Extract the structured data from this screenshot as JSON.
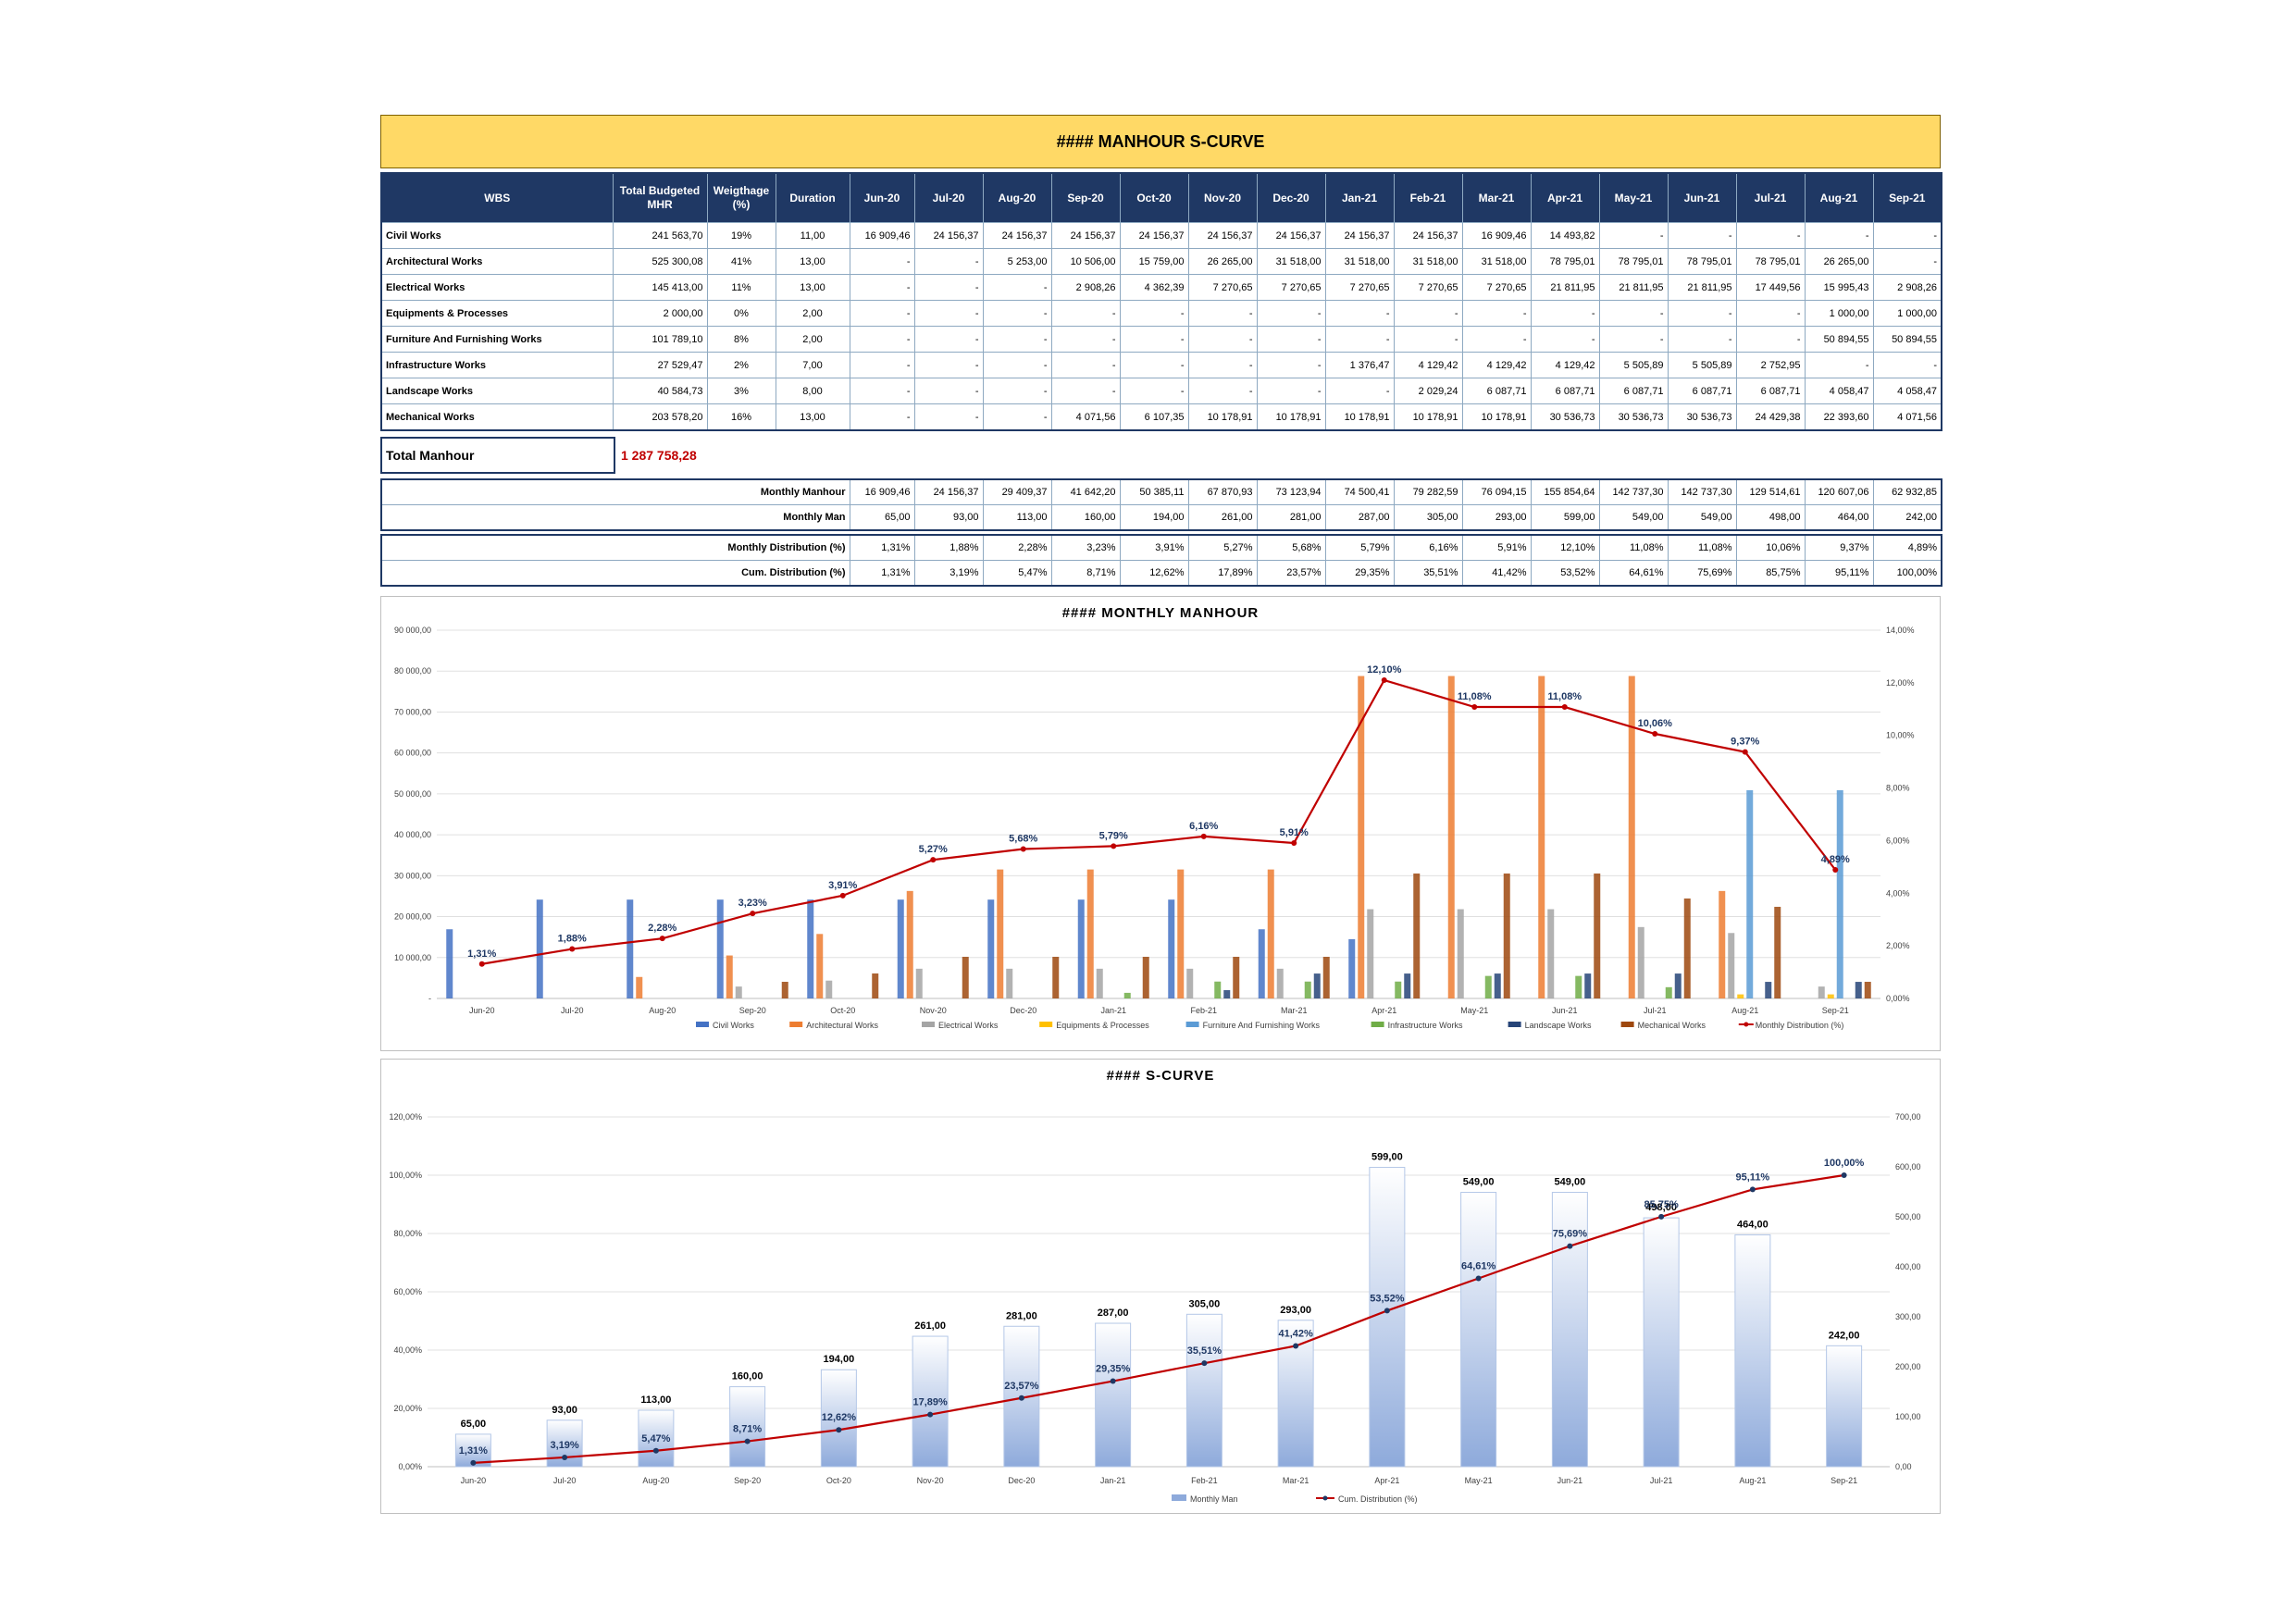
{
  "banner": {
    "title": "#### MANHOUR S-CURVE"
  },
  "columns": {
    "wbs": "WBS",
    "total_budget": "Total Budgeted MHR",
    "weightage": "Weigthage (%)",
    "duration": "Duration",
    "months": [
      "Jun-20",
      "Jul-20",
      "Aug-20",
      "Sep-20",
      "Oct-20",
      "Nov-20",
      "Dec-20",
      "Jan-21",
      "Feb-21",
      "Mar-21",
      "Apr-21",
      "May-21",
      "Jun-21",
      "Jul-21",
      "Aug-21",
      "Sep-21"
    ]
  },
  "wbs_rows": [
    {
      "name": "Civil Works",
      "total": "241 563,70",
      "weight": "19%",
      "duration": "11,00",
      "months": [
        "16 909,46",
        "24 156,37",
        "24 156,37",
        "24 156,37",
        "24 156,37",
        "24 156,37",
        "24 156,37",
        "24 156,37",
        "24 156,37",
        "16 909,46",
        "14 493,82",
        "-",
        "-",
        "-",
        "-",
        "-"
      ]
    },
    {
      "name": "Architectural Works",
      "total": "525 300,08",
      "weight": "41%",
      "duration": "13,00",
      "months": [
        "-",
        "-",
        "5 253,00",
        "10 506,00",
        "15 759,00",
        "26 265,00",
        "31 518,00",
        "31 518,00",
        "31 518,00",
        "31 518,00",
        "78 795,01",
        "78 795,01",
        "78 795,01",
        "78 795,01",
        "26 265,00",
        "-"
      ]
    },
    {
      "name": "Electrical Works",
      "total": "145 413,00",
      "weight": "11%",
      "duration": "13,00",
      "months": [
        "-",
        "-",
        "-",
        "2 908,26",
        "4 362,39",
        "7 270,65",
        "7 270,65",
        "7 270,65",
        "7 270,65",
        "7 270,65",
        "21 811,95",
        "21 811,95",
        "21 811,95",
        "17 449,56",
        "15 995,43",
        "2 908,26"
      ]
    },
    {
      "name": "Equipments & Processes",
      "total": "2 000,00",
      "weight": "0%",
      "duration": "2,00",
      "months": [
        "-",
        "-",
        "-",
        "-",
        "-",
        "-",
        "-",
        "-",
        "-",
        "-",
        "-",
        "-",
        "-",
        "-",
        "1 000,00",
        "1 000,00"
      ]
    },
    {
      "name": "Furniture And Furnishing Works",
      "total": "101 789,10",
      "weight": "8%",
      "duration": "2,00",
      "months": [
        "-",
        "-",
        "-",
        "-",
        "-",
        "-",
        "-",
        "-",
        "-",
        "-",
        "-",
        "-",
        "-",
        "-",
        "50 894,55",
        "50 894,55"
      ]
    },
    {
      "name": "Infrastructure Works",
      "total": "27 529,47",
      "weight": "2%",
      "duration": "7,00",
      "months": [
        "-",
        "-",
        "-",
        "-",
        "-",
        "-",
        "-",
        "1 376,47",
        "4 129,42",
        "4 129,42",
        "4 129,42",
        "5 505,89",
        "5 505,89",
        "2 752,95",
        "-",
        "-"
      ]
    },
    {
      "name": "Landscape Works",
      "total": "40 584,73",
      "weight": "3%",
      "duration": "8,00",
      "months": [
        "-",
        "-",
        "-",
        "-",
        "-",
        "-",
        "-",
        "-",
        "2 029,24",
        "6 087,71",
        "6 087,71",
        "6 087,71",
        "6 087,71",
        "6 087,71",
        "4 058,47",
        "4 058,47"
      ]
    },
    {
      "name": "Mechanical Works",
      "total": "203 578,20",
      "weight": "16%",
      "duration": "13,00",
      "months": [
        "-",
        "-",
        "-",
        "4 071,56",
        "6 107,35",
        "10 178,91",
        "10 178,91",
        "10 178,91",
        "10 178,91",
        "10 178,91",
        "30 536,73",
        "30 536,73",
        "30 536,73",
        "24 429,38",
        "22 393,60",
        "4 071,56"
      ]
    }
  ],
  "total": {
    "label": "Total Manhour",
    "value": "1 287 758,28"
  },
  "summary1": [
    {
      "label": "Monthly Manhour",
      "values": [
        "16 909,46",
        "24 156,37",
        "29 409,37",
        "41 642,20",
        "50 385,11",
        "67 870,93",
        "73 123,94",
        "74 500,41",
        "79 282,59",
        "76 094,15",
        "155 854,64",
        "142 737,30",
        "142 737,30",
        "129 514,61",
        "120 607,06",
        "62 932,85"
      ]
    },
    {
      "label": "Monthly Man",
      "values": [
        "65,00",
        "93,00",
        "113,00",
        "160,00",
        "194,00",
        "261,00",
        "281,00",
        "287,00",
        "305,00",
        "293,00",
        "599,00",
        "549,00",
        "549,00",
        "498,00",
        "464,00",
        "242,00"
      ]
    }
  ],
  "summary2": [
    {
      "label": "Monthly Distribution (%)",
      "values": [
        "1,31%",
        "1,88%",
        "2,28%",
        "3,23%",
        "3,91%",
        "5,27%",
        "5,68%",
        "5,79%",
        "6,16%",
        "5,91%",
        "12,10%",
        "11,08%",
        "11,08%",
        "10,06%",
        "9,37%",
        "4,89%"
      ]
    },
    {
      "label": "Cum. Distribution (%)",
      "values": [
        "1,31%",
        "3,19%",
        "5,47%",
        "8,71%",
        "12,62%",
        "17,89%",
        "23,57%",
        "29,35%",
        "35,51%",
        "41,42%",
        "53,52%",
        "64,61%",
        "75,69%",
        "85,75%",
        "95,11%",
        "100,00%"
      ]
    }
  ],
  "chart_data": [
    {
      "type": "bar",
      "title": "#### MONTHLY MANHOUR",
      "categories": [
        "Jun-20",
        "Jul-20",
        "Aug-20",
        "Sep-20",
        "Oct-20",
        "Nov-20",
        "Dec-20",
        "Jan-21",
        "Feb-21",
        "Mar-21",
        "Apr-21",
        "May-21",
        "Jun-21",
        "Jul-21",
        "Aug-21",
        "Sep-21"
      ],
      "y_left": {
        "lim": [
          0,
          90000
        ],
        "ticks": [
          "-",
          "10 000,00",
          "20 000,00",
          "30 000,00",
          "40 000,00",
          "50 000,00",
          "60 000,00",
          "70 000,00",
          "80 000,00",
          "90 000,00"
        ]
      },
      "y_right": {
        "lim": [
          0,
          14
        ],
        "ticks": [
          "0,00%",
          "2,00%",
          "4,00%",
          "6,00%",
          "8,00%",
          "10,00%",
          "12,00%",
          "14,00%"
        ]
      },
      "grid": true,
      "legend_position": "bottom",
      "series": [
        {
          "name": "Civil Works",
          "color": "#4472c4",
          "values": [
            16909.46,
            24156.37,
            24156.37,
            24156.37,
            24156.37,
            24156.37,
            24156.37,
            24156.37,
            24156.37,
            16909.46,
            14493.82,
            0,
            0,
            0,
            0,
            0
          ]
        },
        {
          "name": "Architectural Works",
          "color": "#ed7d31",
          "values": [
            0,
            0,
            5253,
            10506,
            15759,
            26265,
            31518,
            31518,
            31518,
            31518,
            78795.01,
            78795.01,
            78795.01,
            78795.01,
            26265,
            0
          ]
        },
        {
          "name": "Electrical Works",
          "color": "#a5a5a5",
          "values": [
            0,
            0,
            0,
            2908.26,
            4362.39,
            7270.65,
            7270.65,
            7270.65,
            7270.65,
            7270.65,
            21811.95,
            21811.95,
            21811.95,
            17449.56,
            15995.43,
            2908.26
          ]
        },
        {
          "name": "Equipments & Processes",
          "color": "#ffc000",
          "values": [
            0,
            0,
            0,
            0,
            0,
            0,
            0,
            0,
            0,
            0,
            0,
            0,
            0,
            0,
            1000,
            1000
          ]
        },
        {
          "name": "Furniture And Furnishing Works",
          "color": "#5b9bd5",
          "values": [
            0,
            0,
            0,
            0,
            0,
            0,
            0,
            0,
            0,
            0,
            0,
            0,
            0,
            0,
            50894.55,
            50894.55
          ]
        },
        {
          "name": "Infrastructure Works",
          "color": "#70ad47",
          "values": [
            0,
            0,
            0,
            0,
            0,
            0,
            0,
            1376.47,
            4129.42,
            4129.42,
            4129.42,
            5505.89,
            5505.89,
            2752.95,
            0,
            0
          ]
        },
        {
          "name": "Landscape Works",
          "color": "#264478",
          "values": [
            0,
            0,
            0,
            0,
            0,
            0,
            0,
            0,
            2029.24,
            6087.71,
            6087.71,
            6087.71,
            6087.71,
            6087.71,
            4058.47,
            4058.47
          ]
        },
        {
          "name": "Mechanical Works",
          "color": "#9e480e",
          "values": [
            0,
            0,
            0,
            4071.56,
            6107.35,
            10178.91,
            10178.91,
            10178.91,
            10178.91,
            10178.91,
            30536.73,
            30536.73,
            30536.73,
            24429.38,
            22393.6,
            4071.56
          ]
        }
      ],
      "line": {
        "name": "Monthly Distribution (%)",
        "color": "#c00000",
        "axis": "right",
        "values": [
          1.31,
          1.88,
          2.28,
          3.23,
          3.91,
          5.27,
          5.68,
          5.79,
          6.16,
          5.91,
          12.1,
          11.08,
          11.08,
          10.06,
          9.37,
          4.89
        ],
        "labels": [
          "1,31%",
          "1,88%",
          "2,28%",
          "3,23%",
          "3,91%",
          "5,27%",
          "5,68%",
          "5,79%",
          "6,16%",
          "5,91%",
          "12,10%",
          "11,08%",
          "11,08%",
          "10,06%",
          "9,37%",
          "4,89%"
        ]
      }
    },
    {
      "type": "bar",
      "title": "#### S-CURVE",
      "categories": [
        "Jun-20",
        "Jul-20",
        "Aug-20",
        "Sep-20",
        "Oct-20",
        "Nov-20",
        "Dec-20",
        "Jan-21",
        "Feb-21",
        "Mar-21",
        "Apr-21",
        "May-21",
        "Jun-21",
        "Jul-21",
        "Aug-21",
        "Sep-21"
      ],
      "y_left": {
        "lim": [
          0,
          120
        ],
        "ticks": [
          "0,00%",
          "20,00%",
          "40,00%",
          "60,00%",
          "80,00%",
          "100,00%",
          "120,00%"
        ]
      },
      "y_right": {
        "lim": [
          0,
          700
        ],
        "ticks": [
          "0,00",
          "100,00",
          "200,00",
          "300,00",
          "400,00",
          "500,00",
          "600,00",
          "700,00"
        ]
      },
      "grid": true,
      "legend_position": "bottom",
      "bars": {
        "name": "Monthly Man",
        "color": "#8eaadb",
        "axis": "right",
        "values": [
          65,
          93,
          113,
          160,
          194,
          261,
          281,
          287,
          305,
          293,
          599,
          549,
          549,
          498,
          464,
          242
        ],
        "labels": [
          "65,00",
          "93,00",
          "113,00",
          "160,00",
          "194,00",
          "261,00",
          "281,00",
          "287,00",
          "305,00",
          "293,00",
          "599,00",
          "549,00",
          "549,00",
          "498,00",
          "464,00",
          "242,00"
        ]
      },
      "line": {
        "name": "Cum. Distribution (%)",
        "color": "#c00000",
        "axis": "left",
        "values": [
          1.31,
          3.19,
          5.47,
          8.71,
          12.62,
          17.89,
          23.57,
          29.35,
          35.51,
          41.42,
          53.52,
          64.61,
          75.69,
          85.75,
          95.11,
          100.0
        ],
        "labels": [
          "1,31%",
          "3,19%",
          "5,47%",
          "8,71%",
          "12,62%",
          "17,89%",
          "23,57%",
          "29,35%",
          "35,51%",
          "41,42%",
          "53,52%",
          "64,61%",
          "75,69%",
          "85,75%",
          "95,11%",
          "100,00%"
        ]
      }
    }
  ]
}
